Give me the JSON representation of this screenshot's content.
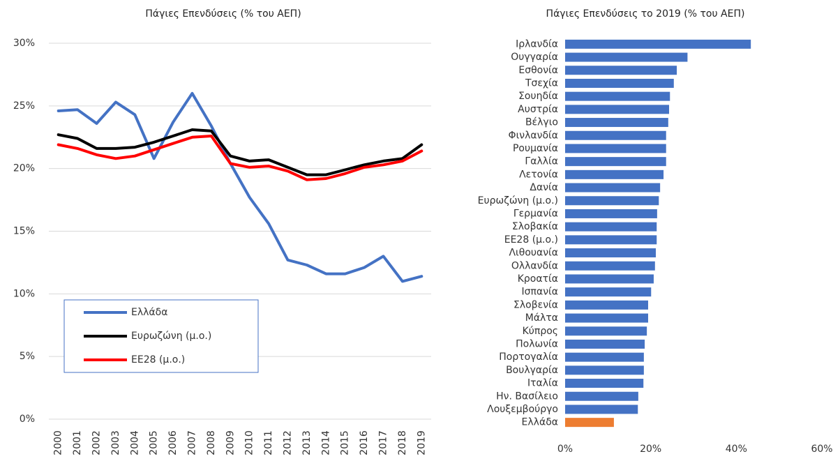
{
  "chart_data": [
    {
      "type": "line",
      "title": "Πάγιες Επενδύσεις (% του ΑΕΠ)",
      "categories": [
        "2000",
        "2001",
        "2002",
        "2003",
        "2004",
        "2005",
        "2006",
        "2007",
        "2008",
        "2009",
        "2010",
        "2011",
        "2012",
        "2013",
        "2014",
        "2015",
        "2016",
        "2017",
        "2018",
        "2019"
      ],
      "series": [
        {
          "name": "Ελλάδα",
          "color": "#4472c4",
          "values": [
            24.6,
            24.7,
            23.6,
            25.3,
            24.3,
            20.8,
            23.7,
            26.0,
            23.4,
            20.4,
            17.7,
            15.6,
            12.7,
            12.3,
            11.6,
            11.6,
            12.1,
            13.0,
            11.0,
            11.4
          ]
        },
        {
          "name": "Ευρωζώνη (μ.ο.)",
          "color": "#000000",
          "values": [
            22.7,
            22.4,
            21.6,
            21.6,
            21.7,
            22.1,
            22.6,
            23.1,
            23.0,
            21.0,
            20.6,
            20.7,
            20.1,
            19.5,
            19.5,
            19.9,
            20.3,
            20.6,
            20.8,
            21.9
          ]
        },
        {
          "name": "ΕΕ28 (μ.ο.)",
          "color": "#ff0000",
          "values": [
            21.9,
            21.6,
            21.1,
            20.8,
            21.0,
            21.5,
            22.0,
            22.5,
            22.6,
            20.4,
            20.1,
            20.2,
            19.8,
            19.1,
            19.2,
            19.6,
            20.1,
            20.3,
            20.6,
            21.4
          ]
        }
      ],
      "ylim": [
        0,
        30
      ],
      "yticks": [
        {
          "value": 0,
          "label": "0%"
        },
        {
          "value": 5,
          "label": "5%"
        },
        {
          "value": 10,
          "label": "10%"
        },
        {
          "value": 15,
          "label": "15%"
        },
        {
          "value": 20,
          "label": "20%"
        },
        {
          "value": 25,
          "label": "25%"
        },
        {
          "value": 30,
          "label": "30%"
        }
      ],
      "grid": true,
      "legend": "lower left"
    },
    {
      "type": "hbar",
      "title": "Πάγιες Επενδύσεις το 2019 (% του ΑΕΠ)",
      "categories": [
        "Ιρλανδία",
        "Ουγγαρία",
        "Εσθονία",
        "Τσεχία",
        "Σουηδία",
        "Αυστρία",
        "Βέλγιο",
        "Φινλανδία",
        "Ρουμανία",
        "Γαλλία",
        "Λετονία",
        "Δανία",
        "Ευρωζώνη (μ.ο.)",
        "Γερμανία",
        "Σλοβακία",
        "ΕΕ28 (μ.ο.)",
        "Λιθουανία",
        "Ολλανδία",
        "Κροατία",
        "Ισπανία",
        "Σλοβενία",
        "Μάλτα",
        "Κύπρος",
        "Πολωνία",
        "Πορτογαλία",
        "Βουλγαρία",
        "Ιταλία",
        "Ην. Βασίλειο",
        "Λουξεμβούργο",
        "Ελλάδα"
      ],
      "values": [
        43.4,
        28.6,
        26.1,
        25.4,
        24.5,
        24.3,
        24.1,
        23.6,
        23.6,
        23.6,
        23.0,
        22.2,
        21.9,
        21.5,
        21.4,
        21.4,
        21.2,
        21.0,
        20.7,
        20.1,
        19.4,
        19.4,
        19.1,
        18.6,
        18.4,
        18.4,
        18.3,
        17.1,
        17.0,
        11.4
      ],
      "colors": [
        "#4472c4",
        "#4472c4",
        "#4472c4",
        "#4472c4",
        "#4472c4",
        "#4472c4",
        "#4472c4",
        "#4472c4",
        "#4472c4",
        "#4472c4",
        "#4472c4",
        "#4472c4",
        "#4472c4",
        "#4472c4",
        "#4472c4",
        "#4472c4",
        "#4472c4",
        "#4472c4",
        "#4472c4",
        "#4472c4",
        "#4472c4",
        "#4472c4",
        "#4472c4",
        "#4472c4",
        "#4472c4",
        "#4472c4",
        "#4472c4",
        "#4472c4",
        "#4472c4",
        "#ed7d31"
      ],
      "xlim": [
        0,
        60
      ],
      "xticks": [
        {
          "value": 0,
          "label": "0%"
        },
        {
          "value": 20,
          "label": "20%"
        },
        {
          "value": 40,
          "label": "40%"
        },
        {
          "value": 60,
          "label": "60%"
        }
      ],
      "grid": false
    }
  ]
}
